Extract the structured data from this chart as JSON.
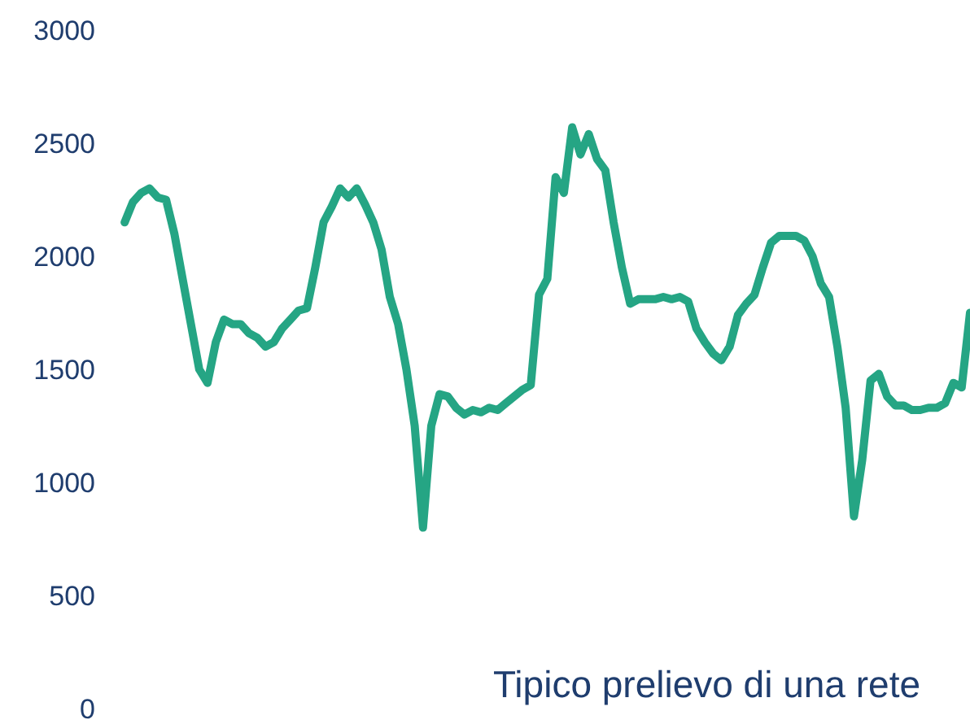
{
  "chart_data": {
    "type": "line",
    "categories": [
      null,
      null,
      null,
      null,
      null,
      null,
      null,
      null,
      null,
      null,
      null,
      null,
      null,
      null,
      null,
      null,
      null,
      null,
      null,
      null,
      null,
      null,
      null,
      null,
      null,
      null,
      null,
      null,
      null,
      null,
      null,
      null,
      null,
      null,
      null,
      null,
      null,
      null,
      null,
      null,
      null,
      null,
      null,
      null,
      null,
      null,
      null,
      null,
      null,
      null,
      null,
      null,
      null,
      null,
      null,
      null,
      null,
      null,
      null,
      null,
      null,
      null,
      null,
      null,
      null,
      null,
      null,
      null,
      null,
      null,
      null,
      null,
      null,
      null,
      null,
      null,
      null,
      null,
      null,
      null,
      null,
      null,
      null,
      null,
      null,
      null,
      null,
      null,
      null,
      null,
      null,
      null,
      null,
      null,
      null,
      null,
      null,
      null,
      null,
      null,
      null,
      null,
      null
    ],
    "series": [
      {
        "color": "#25a584",
        "values": [
          2150,
          2240,
          2280,
          2300,
          2260,
          2250,
          2100,
          1900,
          1700,
          1500,
          1440,
          1620,
          1720,
          1700,
          1700,
          1660,
          1640,
          1600,
          1620,
          1680,
          1720,
          1760,
          1770,
          1950,
          2150,
          2220,
          2300,
          2260,
          2300,
          2230,
          2150,
          2030,
          1820,
          1700,
          1500,
          1250,
          800,
          1250,
          1390,
          1380,
          1330,
          1300,
          1320,
          1310,
          1330,
          1320,
          1350,
          1380,
          1410,
          1430,
          1830,
          1900,
          2350,
          2280,
          2570,
          2450,
          2540,
          2430,
          2380,
          2150,
          1950,
          1790,
          1810,
          1810,
          1810,
          1820,
          1810,
          1820,
          1800,
          1680,
          1620,
          1570,
          1540,
          1600,
          1740,
          1790,
          1830,
          1950,
          2060,
          2090,
          2090,
          2090,
          2070,
          2000,
          1880,
          1820,
          1600,
          1330,
          850,
          1100,
          1450,
          1480,
          1380,
          1340,
          1340,
          1320,
          1320,
          1330,
          1330,
          1350,
          1440,
          1420,
          1750
        ]
      }
    ],
    "ylim": [
      0,
      3000
    ],
    "yticks": [
      0,
      500,
      1000,
      1500,
      2000,
      2500,
      3000
    ],
    "tick_labels": "y",
    "grid": false,
    "annotations": [
      "Tipico prelievo di una rete"
    ]
  }
}
